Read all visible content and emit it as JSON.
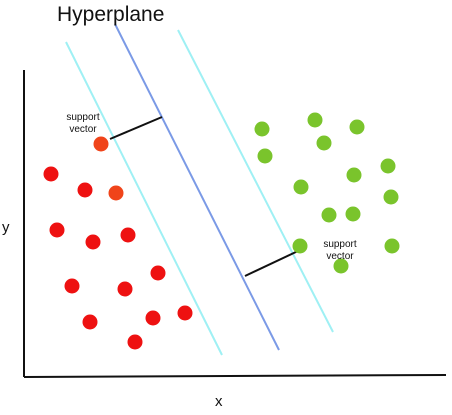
{
  "title": "Hyperplane",
  "axes": {
    "xlabel": "x",
    "ylabel": "y"
  },
  "annotations": {
    "support_vector_top_line1": "support",
    "support_vector_top_line2": "vector",
    "support_vector_bottom_line1": "support",
    "support_vector_bottom_line2": "vector"
  },
  "colors": {
    "axis": "#111111",
    "hyperplane": "#7b9ae6",
    "margin": "#9ff0f4",
    "class_red": "#ee1111",
    "class_red_support": "#f0441a",
    "class_green": "#7ac42c",
    "distance": "#111111"
  },
  "chart_data": {
    "type": "scatter",
    "series": [
      {
        "class": "red",
        "count": 15,
        "support_vectors": 1
      },
      {
        "class": "green",
        "count": 15,
        "support_vectors": 1
      }
    ],
    "lines": [
      "hyperplane",
      "margin",
      "margin"
    ],
    "grid": false
  }
}
